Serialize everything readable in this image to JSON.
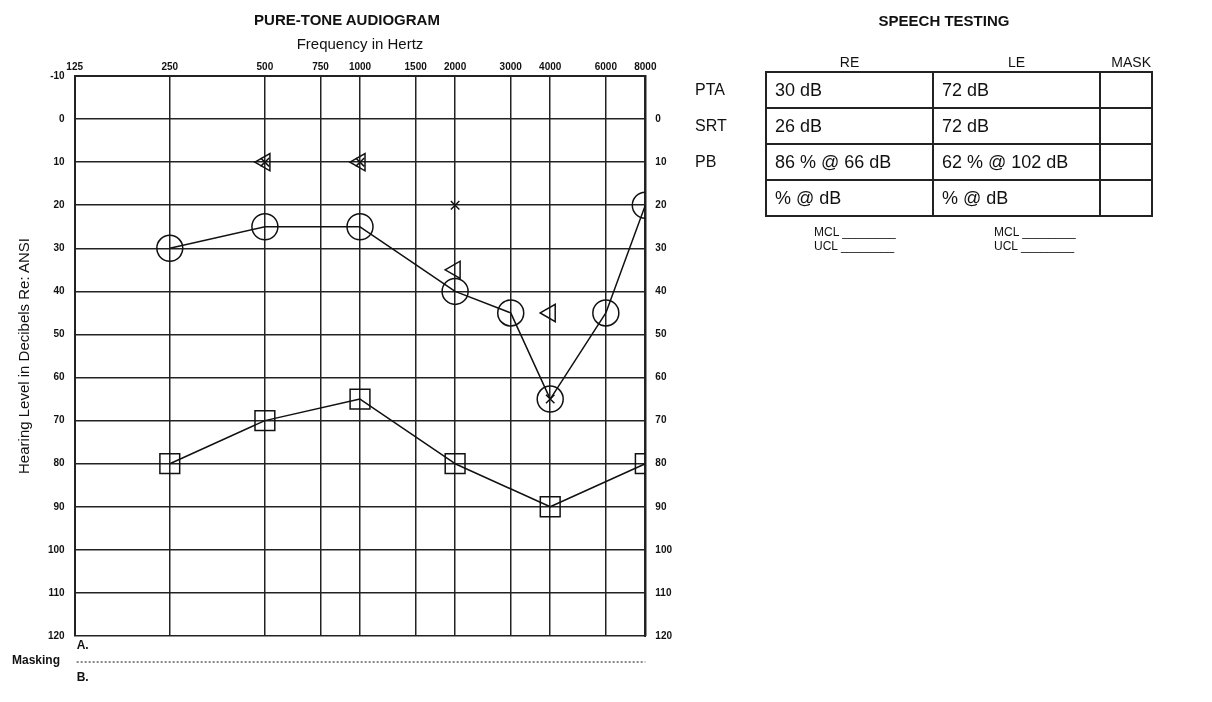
{
  "chart_data": [
    {
      "type": "line",
      "title": "PURE-TONE AUDIOGRAM",
      "xlabel": "Frequency in Hertz",
      "ylabel": "Hearing Level in Decibels Re: ANSI",
      "log": "x",
      "xlim": [
        125,
        8000
      ],
      "xticks": [
        125,
        250,
        500,
        750,
        1000,
        1500,
        2000,
        3000,
        4000,
        6000,
        8000
      ],
      "ylim": [
        120,
        -10
      ],
      "yticks": [
        -10,
        0,
        10,
        20,
        30,
        40,
        50,
        60,
        70,
        80,
        90,
        100,
        110,
        120
      ],
      "y2lim": [
        120,
        -10
      ],
      "y2ticks": [
        0,
        10,
        20,
        30,
        40,
        50,
        60,
        70,
        80,
        90,
        100,
        110,
        120
      ],
      "grid": true,
      "legend": false,
      "line_style": "solid",
      "series": [
        {
          "type": "line",
          "marker": "circle",
          "color": "#111111",
          "x": [
            250,
            500,
            1000,
            2000,
            3000,
            4000,
            6000,
            8000
          ],
          "values": [
            30,
            25,
            25,
            40,
            45,
            65,
            45,
            20
          ]
        },
        {
          "type": "line",
          "marker": "square",
          "color": "#111111",
          "x": [
            250,
            500,
            1000,
            2000,
            4000,
            8000
          ],
          "values": [
            80,
            70,
            65,
            80,
            90,
            80
          ]
        },
        {
          "type": "scatter",
          "marker": "triangle",
          "color": "#111111",
          "x": [
            500,
            1000,
            2000,
            4000
          ],
          "values": [
            10,
            10,
            35,
            45
          ]
        },
        {
          "type": "scatter",
          "marker": "cross",
          "color": "#111111",
          "x": [
            500,
            1000,
            2000,
            4000
          ],
          "values": [
            10,
            10,
            20,
            65
          ]
        }
      ],
      "annotations": [
        "Masking",
        "A.",
        "B."
      ]
    },
    {
      "type": "other",
      "title": "SPEECH TESTING",
      "categories": [
        "RE",
        "LE",
        "MASK"
      ],
      "y_categories": [
        "PTA",
        "SRT",
        "PB",
        null
      ],
      "cell_labels": [
        [
          "30 dB",
          "72 dB",
          null
        ],
        [
          "26 dB",
          "72 dB",
          null
        ],
        [
          "86 % @ 66 dB",
          "62 % @ 102 dB",
          null
        ],
        [
          "% @ dB",
          "% @ dB",
          null
        ]
      ],
      "annotations": [
        "MCL ________",
        "UCL ________",
        "MCL ________",
        "UCL ________"
      ]
    }
  ]
}
